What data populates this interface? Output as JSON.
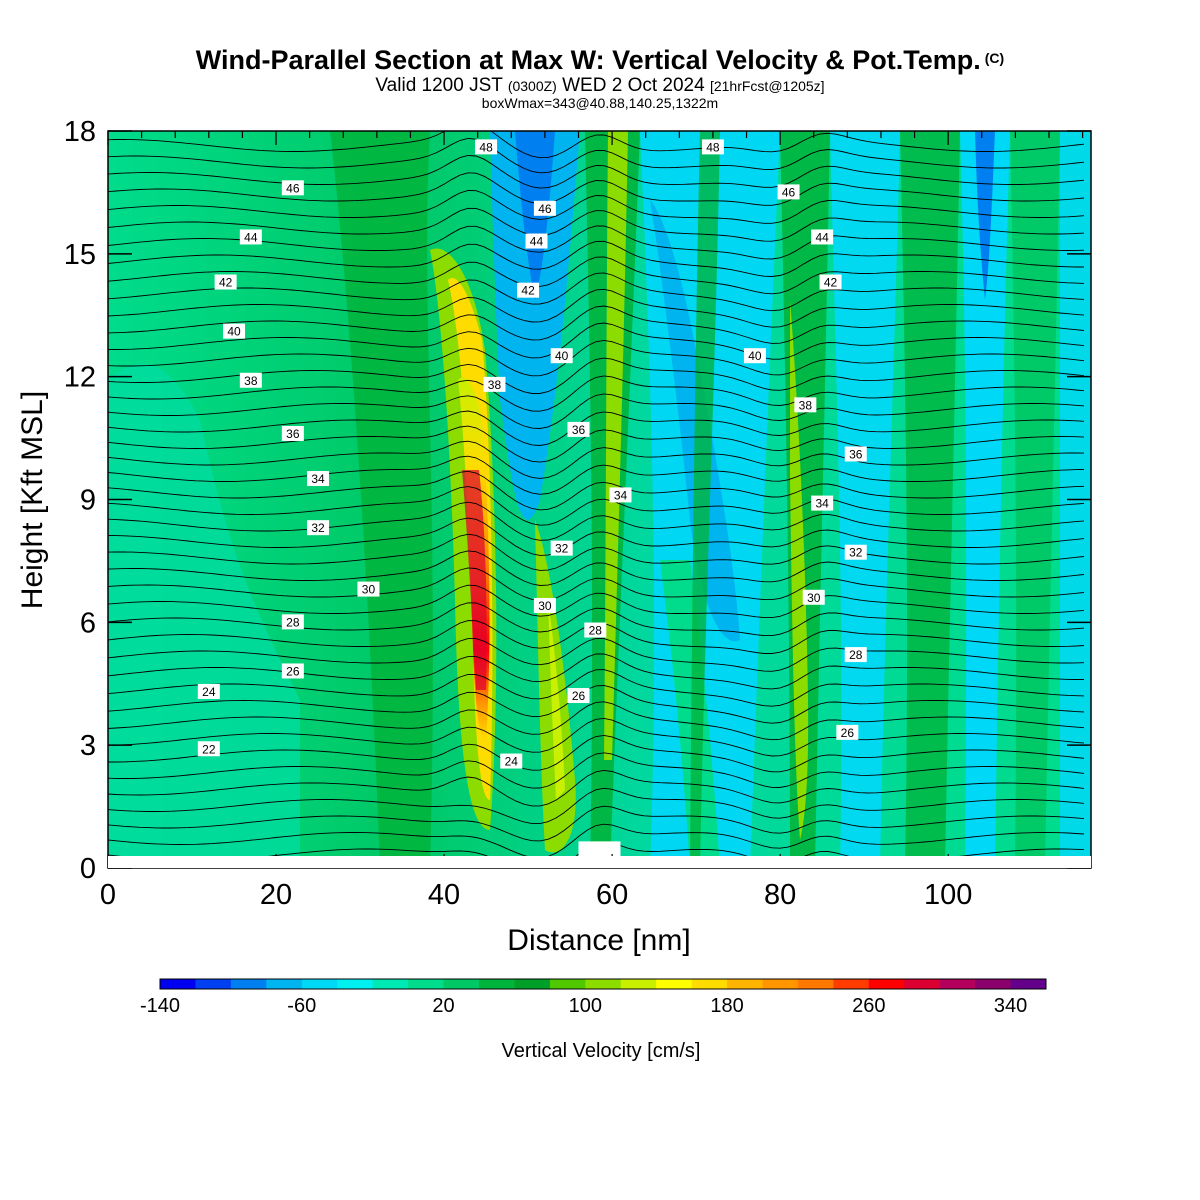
{
  "title": {
    "main": "Wind-Parallel Section at Max W: Vertical Velocity & Pot.Temp.",
    "copyright": "(C)",
    "valid_a": "Valid 1200 JST",
    "valid_b": "(0300Z)",
    "valid_c": "WED 2 Oct 2024",
    "valid_d": "[21hrFcst@1205z]",
    "box": "boxWmax=343@40.88,140.25,1322m"
  },
  "chart_data": {
    "type": "heatmap",
    "xlabel": "Distance [nm]",
    "ylabel": "Height [Kft MSL]",
    "xlim": [
      0,
      117
    ],
    "ylim": [
      0,
      18
    ],
    "x_ticks": [
      0,
      20,
      40,
      60,
      80,
      100
    ],
    "y_ticks": [
      0,
      3,
      6,
      9,
      12,
      15,
      18
    ],
    "terrain_step": {
      "x_from": 56,
      "x_to": 61,
      "height": 0.65
    },
    "colorbar": {
      "label": "Vertical Velocity [cm/s]",
      "tick_labels": [
        "-140",
        "-60",
        "20",
        "100",
        "180",
        "260",
        "340"
      ],
      "tick_values": [
        -140,
        -60,
        20,
        100,
        180,
        260,
        340
      ],
      "bins_min": -140,
      "bin_width": 20,
      "colors": [
        "#0000f0",
        "#0040f0",
        "#0080f0",
        "#00b4f0",
        "#00d8f8",
        "#00f0f0",
        "#00e8b4",
        "#00dc8c",
        "#00c864",
        "#00b43c",
        "#00a028",
        "#50c800",
        "#8cdc00",
        "#c8f000",
        "#ffff00",
        "#ffdc00",
        "#ffb400",
        "#ff9600",
        "#ff7800",
        "#ff3c00",
        "#ff0000",
        "#dc0032",
        "#b4005a",
        "#8c006e",
        "#64008c"
      ]
    },
    "theta_contour_labels": [
      {
        "v": "22",
        "x": 12,
        "y": 2.9
      },
      {
        "v": "24",
        "x": 12,
        "y": 4.3
      },
      {
        "v": "26",
        "x": 22,
        "y": 4.8
      },
      {
        "v": "28",
        "x": 22,
        "y": 6.0
      },
      {
        "v": "30",
        "x": 31,
        "y": 6.8
      },
      {
        "v": "32",
        "x": 25,
        "y": 8.3
      },
      {
        "v": "34",
        "x": 25,
        "y": 9.5
      },
      {
        "v": "36",
        "x": 22,
        "y": 10.6
      },
      {
        "v": "38",
        "x": 17,
        "y": 11.9
      },
      {
        "v": "40",
        "x": 15,
        "y": 13.1
      },
      {
        "v": "42",
        "x": 14,
        "y": 14.3
      },
      {
        "v": "44",
        "x": 17,
        "y": 15.4
      },
      {
        "v": "46",
        "x": 22,
        "y": 16.6
      },
      {
        "v": "48",
        "x": 45,
        "y": 17.6
      },
      {
        "v": "24",
        "x": 48,
        "y": 2.6
      },
      {
        "v": "38",
        "x": 46,
        "y": 11.8
      },
      {
        "v": "36",
        "x": 56,
        "y": 10.7
      },
      {
        "v": "34",
        "x": 61,
        "y": 9.1
      },
      {
        "v": "32",
        "x": 54,
        "y": 7.8
      },
      {
        "v": "30",
        "x": 52,
        "y": 6.4
      },
      {
        "v": "28",
        "x": 58,
        "y": 5.8
      },
      {
        "v": "26",
        "x": 56,
        "y": 4.2
      },
      {
        "v": "40",
        "x": 54,
        "y": 12.5
      },
      {
        "v": "42",
        "x": 50,
        "y": 14.1
      },
      {
        "v": "44",
        "x": 51,
        "y": 15.3
      },
      {
        "v": "46",
        "x": 52,
        "y": 16.1
      },
      {
        "v": "48",
        "x": 72,
        "y": 17.6
      },
      {
        "v": "46",
        "x": 81,
        "y": 16.5
      },
      {
        "v": "44",
        "x": 85,
        "y": 15.4
      },
      {
        "v": "42",
        "x": 86,
        "y": 14.3
      },
      {
        "v": "40",
        "x": 77,
        "y": 12.5
      },
      {
        "v": "38",
        "x": 83,
        "y": 11.3
      },
      {
        "v": "36",
        "x": 89,
        "y": 10.1
      },
      {
        "v": "34",
        "x": 85,
        "y": 8.9
      },
      {
        "v": "32",
        "x": 89,
        "y": 7.7
      },
      {
        "v": "30",
        "x": 84,
        "y": 6.6
      },
      {
        "v": "28",
        "x": 89,
        "y": 5.2
      },
      {
        "v": "26",
        "x": 88,
        "y": 3.3
      }
    ]
  }
}
